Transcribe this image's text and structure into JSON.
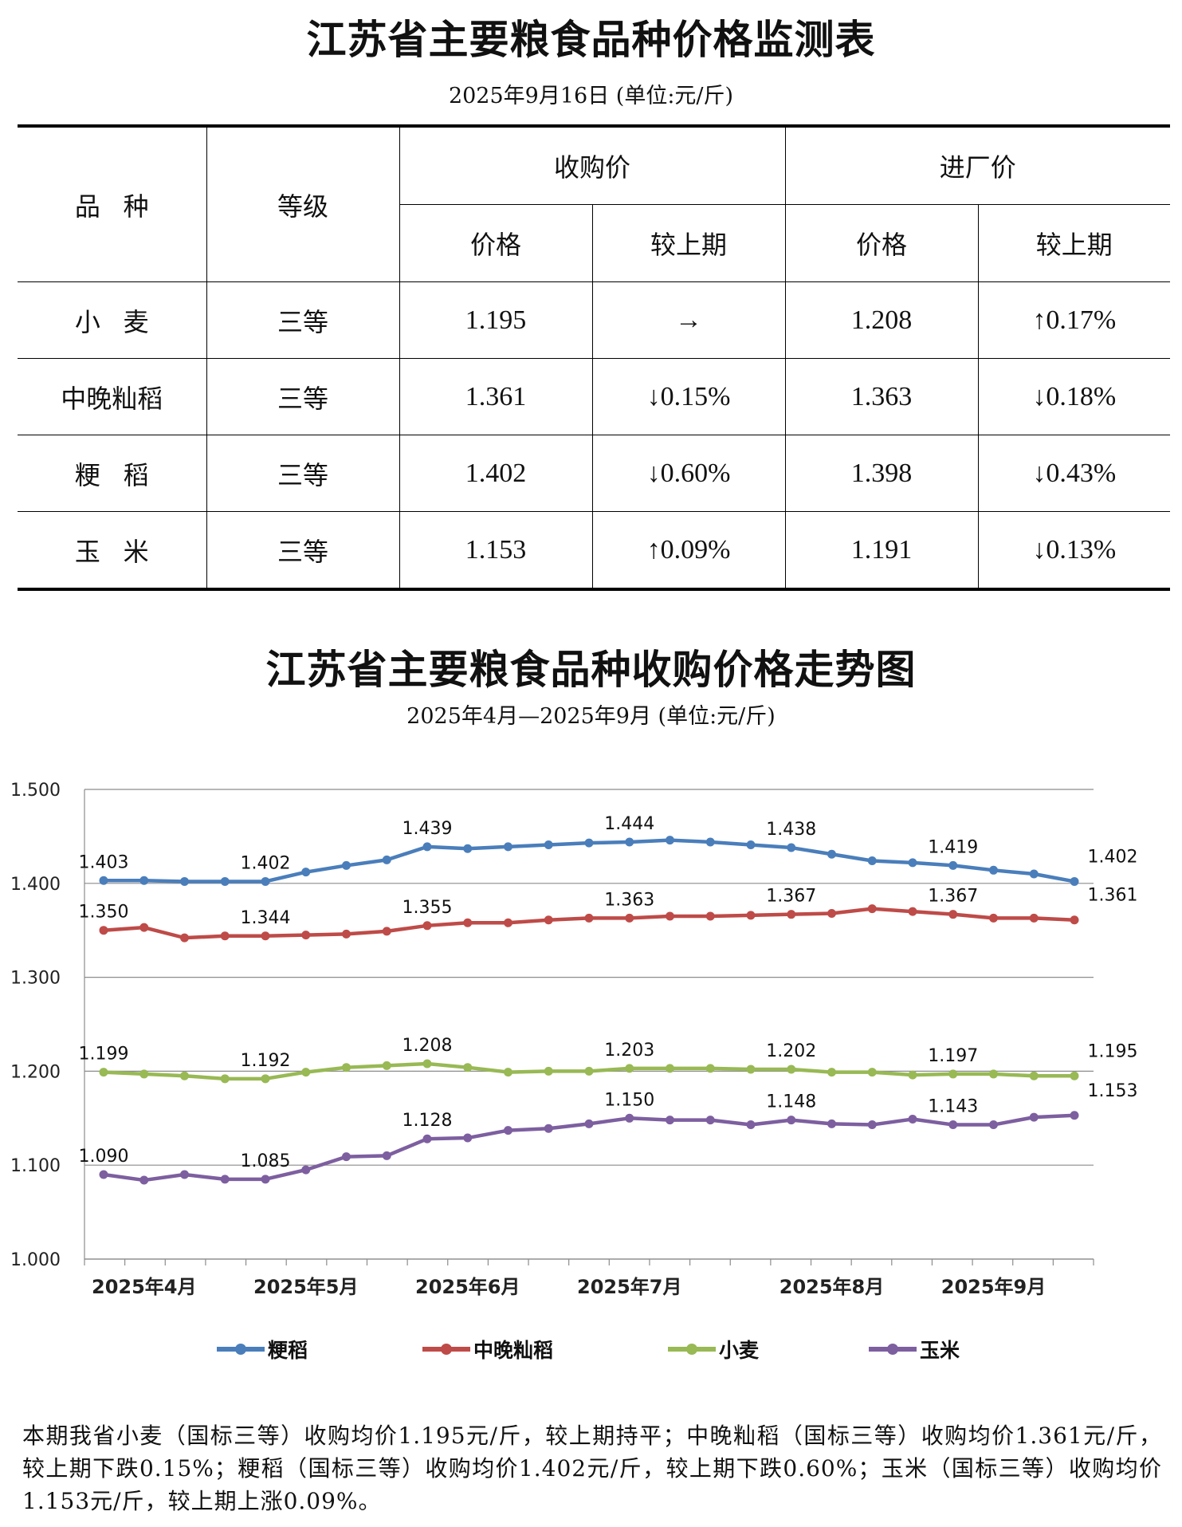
{
  "table_title": "江苏省主要粮食品种价格监测表",
  "table_subtitle": "2025年9月16日  (单位:元/斤)",
  "table": {
    "headers": {
      "variety": "品种",
      "grade": "等级",
      "purchase": "收购价",
      "factory": "进厂价",
      "price": "价格",
      "change": "较上期"
    },
    "rows": [
      {
        "variety": "小麦",
        "grade": "三等",
        "purchase_price": "1.195",
        "purchase_change": "→",
        "factory_price": "1.208",
        "factory_change": "↑0.17%"
      },
      {
        "variety": "中晚籼稻",
        "grade": "三等",
        "purchase_price": "1.361",
        "purchase_change": "↓0.15%",
        "factory_price": "1.363",
        "factory_change": "↓0.18%"
      },
      {
        "variety": "粳稻",
        "grade": "三等",
        "purchase_price": "1.402",
        "purchase_change": "↓0.60%",
        "factory_price": "1.398",
        "factory_change": "↓0.43%"
      },
      {
        "variety": "玉米",
        "grade": "三等",
        "purchase_price": "1.153",
        "purchase_change": "↑0.09%",
        "factory_price": "1.191",
        "factory_change": "↓0.13%"
      }
    ]
  },
  "chart_title": "江苏省主要粮食品种收购价格走势图",
  "chart_subtitle": "2025年4月—2025年9月  (单位:元/斤)",
  "chart_data": {
    "type": "line",
    "title": "江苏省主要粮食品种收购价格走势图",
    "ylim": [
      1.0,
      1.5
    ],
    "yticks": [
      "1.000",
      "1.100",
      "1.200",
      "1.300",
      "1.400",
      "1.500"
    ],
    "grid": true,
    "legend_position": "bottom",
    "month_labels": [
      "2025年4月",
      "2025年5月",
      "2025年6月",
      "2025年7月",
      "2025年8月",
      "2025年9月"
    ],
    "series": [
      {
        "name": "粳稻",
        "color": "#4a7ebb",
        "values": [
          1.403,
          1.403,
          1.402,
          1.402,
          1.402,
          1.412,
          1.419,
          1.425,
          1.439,
          1.437,
          1.439,
          1.441,
          1.443,
          1.444,
          1.446,
          1.444,
          1.441,
          1.438,
          1.431,
          1.424,
          1.422,
          1.419,
          1.414,
          1.41,
          1.402
        ],
        "labels": [
          [
            0,
            "1.403"
          ],
          [
            4,
            "1.402"
          ],
          [
            8,
            "1.439"
          ],
          [
            13,
            "1.444"
          ],
          [
            17,
            "1.438"
          ],
          [
            21,
            "1.419"
          ],
          [
            24,
            "1.402"
          ]
        ]
      },
      {
        "name": "中晚籼稻",
        "color": "#be4b48",
        "values": [
          1.35,
          1.353,
          1.342,
          1.344,
          1.344,
          1.345,
          1.346,
          1.349,
          1.355,
          1.358,
          1.358,
          1.361,
          1.363,
          1.363,
          1.365,
          1.365,
          1.366,
          1.367,
          1.368,
          1.373,
          1.37,
          1.367,
          1.363,
          1.363,
          1.361
        ],
        "labels": [
          [
            0,
            "1.350"
          ],
          [
            4,
            "1.344"
          ],
          [
            8,
            "1.355"
          ],
          [
            13,
            "1.363"
          ],
          [
            17,
            "1.367"
          ],
          [
            21,
            "1.367"
          ],
          [
            24,
            "1.361"
          ]
        ]
      },
      {
        "name": "小麦",
        "color": "#98b954",
        "values": [
          1.199,
          1.197,
          1.195,
          1.192,
          1.192,
          1.199,
          1.204,
          1.206,
          1.208,
          1.204,
          1.199,
          1.2,
          1.2,
          1.203,
          1.203,
          1.203,
          1.202,
          1.202,
          1.199,
          1.199,
          1.196,
          1.197,
          1.197,
          1.195,
          1.195
        ],
        "labels": [
          [
            0,
            "1.199"
          ],
          [
            4,
            "1.192"
          ],
          [
            8,
            "1.208"
          ],
          [
            13,
            "1.203"
          ],
          [
            17,
            "1.202"
          ],
          [
            21,
            "1.197"
          ],
          [
            24,
            "1.195"
          ]
        ]
      },
      {
        "name": "玉米",
        "color": "#7d5fa0",
        "values": [
          1.09,
          1.084,
          1.09,
          1.085,
          1.085,
          1.095,
          1.109,
          1.11,
          1.128,
          1.129,
          1.137,
          1.139,
          1.144,
          1.15,
          1.148,
          1.148,
          1.143,
          1.148,
          1.144,
          1.143,
          1.149,
          1.143,
          1.143,
          1.151,
          1.153
        ],
        "labels": [
          [
            0,
            "1.090"
          ],
          [
            4,
            "1.085"
          ],
          [
            8,
            "1.128"
          ],
          [
            13,
            "1.150"
          ],
          [
            17,
            "1.148"
          ],
          [
            21,
            "1.143"
          ],
          [
            24,
            "1.153"
          ]
        ]
      }
    ]
  },
  "note": "本期我省小麦（国标三等）收购均价1.195元/斤，较上期持平；中晚籼稻（国标三等）收购均价1.361元/斤，较上期下跌0.15%；粳稻（国标三等）收购均价1.402元/斤，较上期下跌0.60%；玉米（国标三等）收购均价1.153元/斤，较上期上涨0.09%。"
}
